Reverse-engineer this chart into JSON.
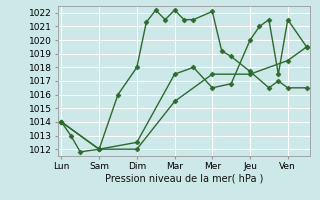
{
  "title": "",
  "xlabel": "Pression niveau de la mer( hPa )",
  "bg_color": "#cce8e8",
  "grid_color": "#ffffff",
  "line_color": "#2d6a2d",
  "marker": "D",
  "markersize": 2.5,
  "linewidth": 1.0,
  "ylim": [
    1011.5,
    1022.5
  ],
  "yticks": [
    1012,
    1013,
    1014,
    1015,
    1016,
    1017,
    1018,
    1019,
    1020,
    1021,
    1022
  ],
  "xtick_labels": [
    "Lun",
    "Sam",
    "Dim",
    "Mar",
    "Mer",
    "Jeu",
    "Ven"
  ],
  "xtick_positions": [
    0,
    1,
    2,
    3,
    4,
    5,
    6
  ],
  "xlim": [
    -0.1,
    6.6
  ],
  "series1_x": [
    0.0,
    0.25,
    0.5,
    1.0,
    1.5,
    2.0,
    2.25,
    2.5,
    2.75,
    3.0,
    3.25,
    3.5,
    4.0,
    4.25,
    4.5,
    5.0,
    5.5,
    5.75,
    6.0,
    6.5
  ],
  "series1_y": [
    1014.0,
    1013.0,
    1011.8,
    1012.0,
    1016.0,
    1018.0,
    1021.3,
    1022.2,
    1021.5,
    1022.2,
    1021.5,
    1021.5,
    1022.1,
    1019.2,
    1018.8,
    1017.7,
    1016.5,
    1017.0,
    1016.5,
    1016.5
  ],
  "series2_x": [
    0.0,
    1.0,
    2.0,
    3.0,
    4.0,
    5.0,
    6.0,
    6.5
  ],
  "series2_y": [
    1014.0,
    1012.0,
    1012.0,
    1015.5,
    1017.5,
    1017.5,
    1018.5,
    1019.5
  ],
  "series3_x": [
    0.0,
    1.0,
    2.0,
    3.0,
    3.5,
    4.0,
    4.5,
    5.0,
    5.25,
    5.5,
    5.75,
    6.0,
    6.5
  ],
  "series3_y": [
    1014.0,
    1012.0,
    1012.5,
    1017.5,
    1018.0,
    1016.5,
    1016.8,
    1020.0,
    1021.0,
    1021.5,
    1017.5,
    1021.5,
    1019.5
  ]
}
